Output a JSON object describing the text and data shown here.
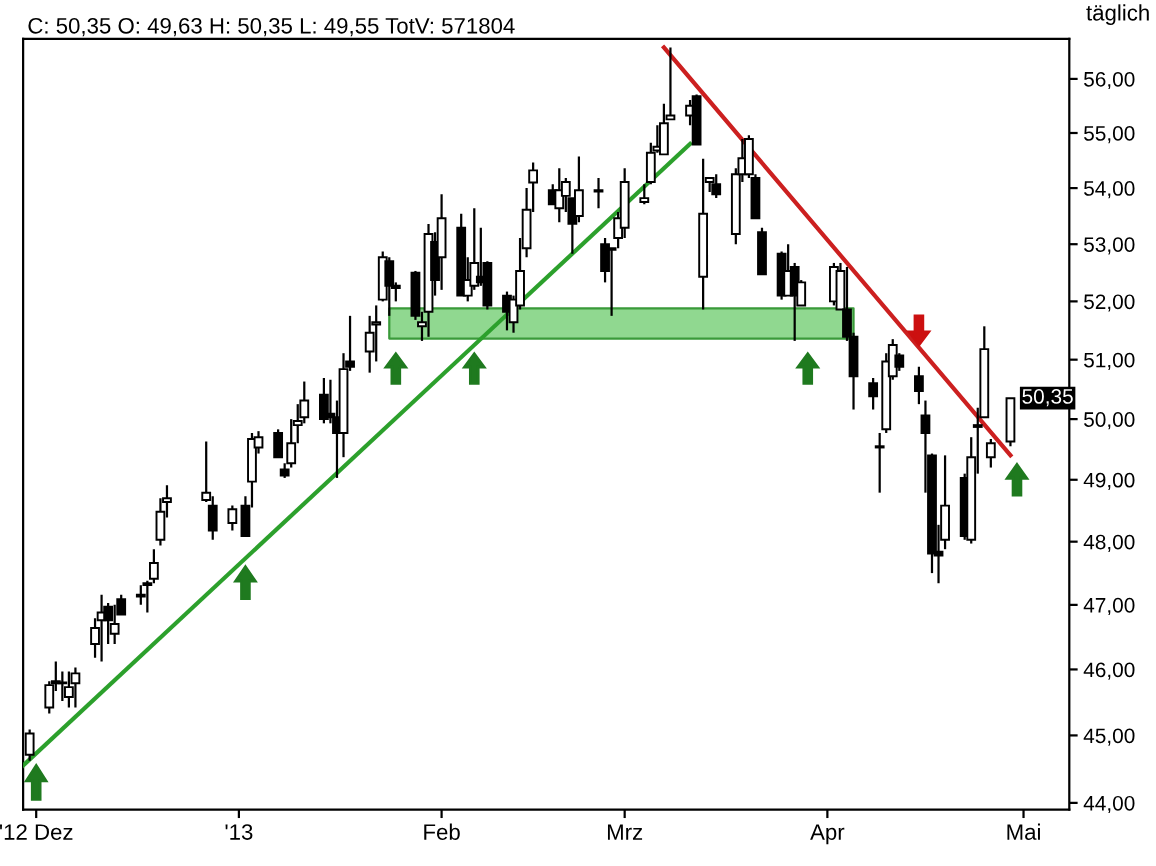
{
  "chart_data": {
    "type": "candlestick",
    "title": "C: 50,35 O: 49,63 H: 50,35 L: 49,55 TotV: 571804",
    "annotations": [
      "täglich",
      {
        "text": "50,35",
        "x": "2013-04-29",
        "y": 50.35
      }
    ],
    "log": true,
    "ylim": [
      43.9,
      56.75
    ],
    "yticks": [
      {
        "value": 44,
        "label": "44,00"
      },
      {
        "value": 45,
        "label": "45,00"
      },
      {
        "value": 46,
        "label": "46,00"
      },
      {
        "value": 47,
        "label": "47,00"
      },
      {
        "value": 48,
        "label": "48,00"
      },
      {
        "value": 49,
        "label": "49,00"
      },
      {
        "value": 50,
        "label": "50,00"
      },
      {
        "value": 51,
        "label": "51,00"
      },
      {
        "value": 52,
        "label": "52,00"
      },
      {
        "value": 53,
        "label": "53,00"
      },
      {
        "value": 54,
        "label": "54,00"
      },
      {
        "value": 55,
        "label": "55,00"
      },
      {
        "value": 56,
        "label": "56,00"
      }
    ],
    "xlim": [
      "2012-11-29",
      "2013-05-08"
    ],
    "xticks": [
      {
        "value": "2012-12-01",
        "label": "'12 Dez"
      },
      {
        "value": "2013-01-01",
        "label": "'13"
      },
      {
        "value": "2013-02-01",
        "label": "Feb"
      },
      {
        "value": "2013-03-01",
        "label": "Mrz"
      },
      {
        "value": "2013-04-01",
        "label": "Apr"
      },
      {
        "value": "2013-05-01",
        "label": "Mai"
      }
    ],
    "grid": false,
    "legend": false,
    "series": [
      {
        "type": "line",
        "color": "#90d890",
        "x": [
          "2013-01-24",
          "2013-04-05"
        ],
        "values": [
          null,
          null
        ],
        "lower": [
          51.36,
          51.36
        ],
        "upper": [
          51.88,
          51.88
        ]
      },
      {
        "type": "line",
        "color": "#2ca02c",
        "x": [
          "2012-11-29",
          "2013-03-11"
        ],
        "values": [
          44.55,
          54.8
        ]
      },
      {
        "type": "line",
        "color": "#cc2020",
        "x": [
          "2013-03-07",
          "2013-04-29"
        ],
        "values": [
          56.59,
          49.4
        ]
      },
      {
        "color": "#000000",
        "x": [
          "2012-11-30",
          "2012-12-03",
          "2012-12-04",
          "2012-12-05",
          "2012-12-06",
          "2012-12-07",
          "2012-12-10",
          "2012-12-11",
          "2012-12-12",
          "2012-12-13",
          "2012-12-14",
          "2012-12-17",
          "2012-12-18",
          "2012-12-19",
          "2012-12-20",
          "2012-12-21",
          "2012-12-27",
          "2012-12-28",
          "2012-12-31",
          "2013-01-02",
          "2013-01-03",
          "2013-01-04",
          "2013-01-07",
          "2013-01-08",
          "2013-01-09",
          "2013-01-10",
          "2013-01-11",
          "2013-01-14",
          "2013-01-15",
          "2013-01-16",
          "2013-01-17",
          "2013-01-18",
          "2013-01-21",
          "2013-01-22",
          "2013-01-23",
          "2013-01-24",
          "2013-01-25",
          "2013-01-28",
          "2013-01-29",
          "2013-01-30",
          "2013-01-31",
          "2013-02-01",
          "2013-02-04",
          "2013-02-05",
          "2013-02-06",
          "2013-02-07",
          "2013-02-08",
          "2013-02-11",
          "2013-02-12",
          "2013-02-13",
          "2013-02-14",
          "2013-02-15",
          "2013-02-18",
          "2013-02-19",
          "2013-02-20",
          "2013-02-21",
          "2013-02-22",
          "2013-02-25",
          "2013-02-26",
          "2013-02-27",
          "2013-02-28",
          "2013-03-01",
          "2013-03-04",
          "2013-03-05",
          "2013-03-06",
          "2013-03-07",
          "2013-03-08",
          "2013-03-11",
          "2013-03-12",
          "2013-03-13",
          "2013-03-14",
          "2013-03-15",
          "2013-03-18",
          "2013-03-19",
          "2013-03-20",
          "2013-03-21",
          "2013-03-22",
          "2013-03-25",
          "2013-03-26",
          "2013-03-27",
          "2013-03-28",
          "2013-04-02",
          "2013-04-03",
          "2013-04-04",
          "2013-04-05",
          "2013-04-08",
          "2013-04-09",
          "2013-04-10",
          "2013-04-11",
          "2013-04-12",
          "2013-04-15",
          "2013-04-16",
          "2013-04-17",
          "2013-04-18",
          "2013-04-19",
          "2013-04-22",
          "2013-04-23",
          "2013-04-24",
          "2013-04-25",
          "2013-04-26",
          "2013-04-29"
        ],
        "ohlc": [
          [
            44.71,
            45.09,
            44.62,
            45.03
          ],
          [
            45.42,
            45.82,
            45.33,
            45.76
          ],
          [
            45.79,
            46.12,
            45.67,
            45.82
          ],
          [
            45.79,
            45.97,
            45.52,
            45.8
          ],
          [
            45.58,
            45.97,
            45.42,
            45.73
          ],
          [
            45.79,
            46.03,
            45.42,
            45.94
          ],
          [
            46.39,
            46.79,
            46.18,
            46.64
          ],
          [
            46.76,
            47.16,
            46.12,
            46.88
          ],
          [
            46.97,
            47.03,
            46.39,
            46.76
          ],
          [
            46.55,
            47.0,
            46.39,
            46.7
          ],
          [
            47.09,
            47.16,
            46.85,
            46.85
          ],
          [
            47.13,
            47.31,
            47.0,
            47.16
          ],
          [
            47.31,
            47.38,
            46.88,
            47.34
          ],
          [
            47.41,
            47.88,
            47.34,
            47.66
          ],
          [
            48.03,
            48.7,
            47.94,
            48.48
          ],
          [
            48.64,
            48.91,
            48.39,
            48.7
          ],
          [
            48.67,
            49.63,
            48.64,
            48.79
          ],
          [
            48.58,
            48.73,
            48.03,
            48.18
          ],
          [
            48.3,
            48.58,
            48.18,
            48.52
          ],
          [
            48.58,
            48.73,
            48.09,
            48.09
          ],
          [
            48.97,
            49.77,
            48.55,
            49.67
          ],
          [
            49.53,
            49.8,
            49.43,
            49.7
          ],
          [
            49.77,
            49.83,
            49.37,
            49.37
          ],
          [
            49.17,
            49.27,
            49.03,
            49.07
          ],
          [
            49.27,
            50.0,
            49.2,
            49.6
          ],
          [
            49.9,
            50.25,
            49.6,
            49.97
          ],
          [
            50.03,
            50.63,
            49.93,
            50.31
          ],
          [
            50.41,
            50.69,
            49.93,
            50.0
          ],
          [
            50.09,
            50.66,
            49.93,
            50.03
          ],
          [
            50.03,
            50.31,
            49.03,
            49.77
          ],
          [
            49.77,
            51.11,
            49.37,
            50.84
          ],
          [
            50.97,
            51.75,
            50.81,
            50.88
          ],
          [
            51.14,
            51.75,
            50.78,
            51.46
          ],
          [
            51.6,
            51.93,
            50.97,
            51.64
          ],
          [
            52.03,
            52.87,
            52.0,
            52.77
          ],
          [
            52.7,
            52.77,
            51.75,
            52.27
          ],
          [
            52.27,
            52.33,
            52.0,
            52.23
          ],
          [
            52.5,
            52.53,
            51.68,
            51.75
          ],
          [
            51.57,
            51.82,
            51.32,
            51.64
          ],
          [
            51.82,
            53.36,
            51.39,
            53.18
          ],
          [
            53.04,
            53.21,
            52.1,
            52.37
          ],
          [
            52.77,
            53.89,
            52.2,
            53.46
          ],
          [
            53.29,
            53.54,
            52.1,
            52.1
          ],
          [
            52.1,
            52.77,
            52.0,
            52.37
          ],
          [
            52.27,
            53.64,
            52.2,
            52.67
          ],
          [
            52.43,
            53.29,
            52.27,
            52.33
          ],
          [
            52.67,
            52.7,
            51.86,
            51.93
          ],
          [
            52.1,
            52.17,
            51.5,
            51.82
          ],
          [
            51.64,
            52.1,
            51.46,
            52.03
          ],
          [
            51.93,
            53.11,
            51.86,
            52.53
          ],
          [
            52.93,
            54.0,
            52.77,
            53.61
          ],
          [
            54.1,
            54.46,
            53.57,
            54.32
          ],
          [
            53.96,
            54.07,
            53.71,
            53.71
          ],
          [
            53.64,
            54.36,
            53.39,
            53.96
          ],
          [
            53.86,
            54.18,
            53.57,
            54.11
          ],
          [
            53.82,
            53.82,
            52.83,
            53.36
          ],
          [
            53.5,
            54.57,
            53.39,
            53.96
          ],
          [
            53.94,
            54.18,
            53.64,
            53.96
          ],
          [
            53.0,
            53.11,
            52.33,
            52.53
          ],
          [
            52.93,
            52.93,
            51.75,
            52.9
          ],
          [
            53.11,
            53.57,
            52.93,
            53.46
          ],
          [
            53.29,
            54.36,
            53.11,
            54.11
          ],
          [
            53.75,
            54.07,
            53.71,
            53.82
          ],
          [
            54.11,
            54.82,
            54.07,
            54.64
          ],
          [
            54.68,
            55.14,
            54.64,
            54.75
          ],
          [
            54.61,
            55.54,
            54.61,
            55.18
          ],
          [
            55.25,
            56.59,
            55.25,
            55.32
          ],
          [
            55.32,
            55.61,
            55.14,
            55.5
          ],
          [
            55.68,
            55.71,
            54.79,
            54.79
          ],
          [
            52.43,
            54.53,
            51.86,
            53.54
          ],
          [
            54.11,
            54.18,
            53.93,
            54.18
          ],
          [
            54.07,
            54.25,
            53.82,
            53.89
          ],
          [
            53.18,
            54.36,
            53.0,
            54.25
          ],
          [
            54.25,
            54.89,
            54.11,
            54.54
          ],
          [
            54.25,
            54.96,
            54.18,
            54.89
          ],
          [
            54.18,
            54.25,
            53.46,
            53.46
          ],
          [
            53.21,
            53.29,
            52.47,
            52.47
          ],
          [
            52.83,
            52.87,
            52.03,
            52.1
          ],
          [
            52.1,
            53.0,
            52.1,
            52.53
          ],
          [
            52.6,
            52.67,
            51.32,
            52.1
          ],
          [
            51.93,
            52.37,
            51.93,
            52.33
          ],
          [
            52.0,
            52.67,
            51.93,
            52.6
          ],
          [
            51.86,
            52.67,
            51.86,
            52.53
          ],
          [
            51.86,
            52.6,
            51.32,
            51.39
          ],
          [
            51.39,
            51.46,
            50.16,
            50.72
          ],
          [
            50.6,
            50.69,
            50.16,
            50.38
          ],
          [
            49.55,
            49.77,
            48.79,
            49.53
          ],
          [
            49.83,
            51.11,
            49.77,
            50.97
          ],
          [
            50.72,
            51.35,
            50.66,
            51.25
          ],
          [
            51.07,
            51.11,
            50.81,
            50.88
          ],
          [
            50.72,
            50.88,
            50.25,
            50.47
          ],
          [
            50.06,
            50.31,
            48.79,
            49.77
          ],
          [
            49.4,
            49.43,
            47.5,
            47.81
          ],
          [
            47.84,
            48.27,
            47.34,
            47.78
          ],
          [
            48.03,
            49.4,
            47.88,
            48.58
          ],
          [
            49.03,
            49.1,
            48.03,
            48.09
          ],
          [
            48.03,
            49.7,
            47.97,
            49.37
          ],
          [
            49.87,
            50.19,
            49.1,
            49.9
          ],
          [
            50.03,
            51.57,
            50.03,
            51.18
          ],
          [
            49.37,
            49.67,
            49.2,
            49.6
          ],
          [
            49.63,
            50.35,
            49.55,
            50.35
          ]
        ]
      }
    ]
  }
}
